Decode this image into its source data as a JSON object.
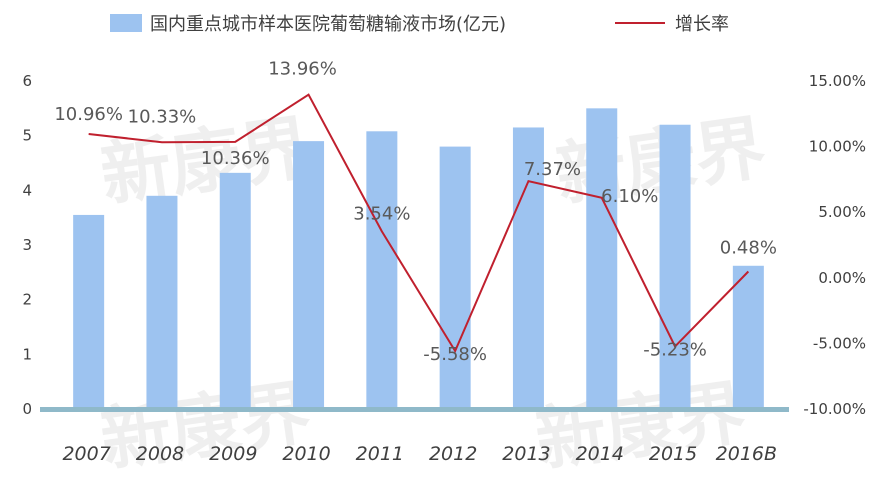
{
  "chart_data": {
    "type": "bar",
    "categories": [
      "2007",
      "2008",
      "2009",
      "2010",
      "2011",
      "2012",
      "2013",
      "2014",
      "2015",
      "2016B"
    ],
    "series": [
      {
        "name": "国内重点城市样本医院葡萄糖输液市场(亿元)",
        "type": "bar",
        "axis": "left",
        "values": [
          3.55,
          3.9,
          4.32,
          4.9,
          5.08,
          4.8,
          5.15,
          5.5,
          5.2,
          2.62
        ],
        "color": "#9DC3F0"
      },
      {
        "name": "增长率",
        "type": "line",
        "axis": "right",
        "values": [
          10.96,
          10.33,
          10.36,
          13.96,
          3.54,
          -5.58,
          7.37,
          6.1,
          -5.23,
          0.48
        ],
        "labels": [
          "10.96%",
          "10.33%",
          "10.36%",
          "13.96%",
          "3.54%",
          "-5.58%",
          "7.37%",
          "6.10%",
          "-5.23%",
          "0.48%"
        ],
        "color": "#C0202E"
      }
    ],
    "y_left": {
      "ylim": [
        0,
        6
      ],
      "ticks": [
        "0",
        "1",
        "2",
        "3",
        "4",
        "5",
        "6"
      ]
    },
    "y_right": {
      "ylim": [
        -10,
        15
      ],
      "ticks": [
        "-10.00%",
        "-5.00%",
        "0.00%",
        "5.00%",
        "10.00%",
        "15.00%"
      ]
    },
    "legend": {
      "position": "top",
      "bar_label": "国内重点城市样本医院葡萄糖输液市场(亿元)",
      "line_label": "增长率"
    },
    "grid": false
  },
  "watermark": "新康界"
}
